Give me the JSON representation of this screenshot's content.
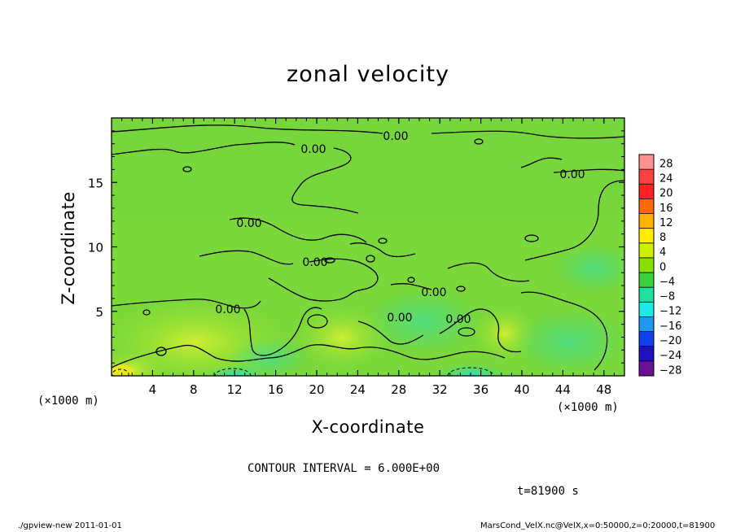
{
  "chart_data": {
    "type": "heatmap",
    "title": "zonal velocity",
    "xlabel": "X-coordinate",
    "ylabel": "Z-coordinate",
    "x_unit": "(×1000 m)",
    "y_unit": "(×1000 m)",
    "xlim": [
      0,
      50
    ],
    "ylim": [
      0,
      20
    ],
    "x_ticks": [
      4,
      8,
      12,
      16,
      20,
      24,
      28,
      32,
      36,
      40,
      44,
      48
    ],
    "y_ticks": [
      5,
      10,
      15
    ],
    "colorbar": {
      "levels": [
        28,
        24,
        20,
        16,
        12,
        8,
        4,
        0,
        -4,
        -8,
        -12,
        -16,
        -20,
        -24,
        -28
      ],
      "labels": [
        "28",
        "24",
        "20",
        "16",
        "12",
        "8",
        "4",
        "0",
        "−4",
        "−8",
        "−12",
        "−16",
        "−20",
        "−24",
        "−28"
      ],
      "colors": [
        "#ff9090",
        "#ff4040",
        "#ff2020",
        "#ff6a00",
        "#ffb000",
        "#ffee00",
        "#ccf000",
        "#88e000",
        "#3ccf3c",
        "#20e0a0",
        "#20e8e8",
        "#2098f0",
        "#1040e8",
        "#2010c0",
        "#6a1098"
      ]
    },
    "contour_labels": [
      "0.00",
      "0.00",
      "0.00",
      "0.00",
      "0.00",
      "0.00",
      "0.00",
      "0.00",
      "0.00"
    ],
    "contour_interval_text": "CONTOUR INTERVAL = 6.000E+00",
    "time_text": "t=81900 s"
  },
  "footer": {
    "left": "./gpview-new   2011-01-01",
    "right": "MarsCond_VelX.nc@VelX,x=0:50000,z=0:20000,t=81900"
  }
}
